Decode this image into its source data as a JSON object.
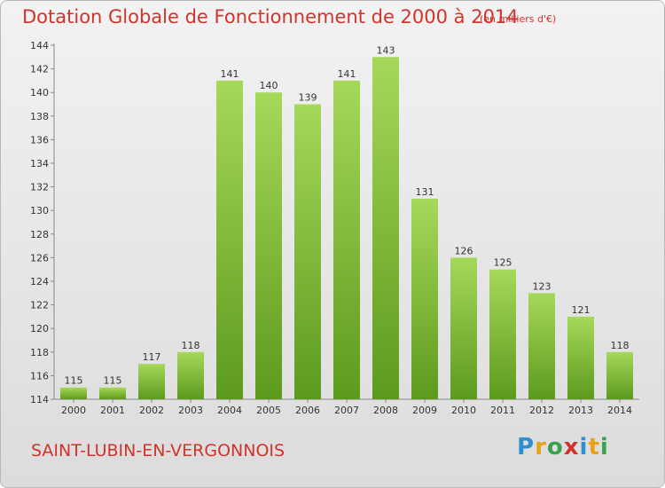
{
  "header": {
    "title": "Dotation Globale de Fonctionnement de 2000 à 2014",
    "unit": "(en milliers d'€)"
  },
  "footer": {
    "commune": "SAINT-LUBIN-EN-VERGONNOIS",
    "logo_letters": [
      "P",
      "r",
      "o",
      "x",
      "i",
      "t",
      "i"
    ],
    "logo_colors": [
      "#2f8fd1",
      "#e8a21a",
      "#3aa34a",
      "#d0342c",
      "#2f8fd1",
      "#e8a21a",
      "#3aa34a"
    ]
  },
  "colors": {
    "bar_light": "#a6d85a",
    "bar_dark": "#5c9a1e",
    "title": "#d0342c"
  },
  "chart_data": {
    "type": "bar",
    "categories": [
      "2000",
      "2001",
      "2002",
      "2003",
      "2004",
      "2005",
      "2006",
      "2007",
      "2008",
      "2009",
      "2010",
      "2011",
      "2012",
      "2013",
      "2014"
    ],
    "values": [
      115,
      115,
      117,
      118,
      141,
      140,
      139,
      141,
      143,
      131,
      126,
      125,
      123,
      121,
      118
    ],
    "ylim": [
      114,
      144
    ],
    "yticks": [
      114,
      116,
      118,
      120,
      122,
      124,
      126,
      128,
      130,
      132,
      134,
      136,
      138,
      140,
      142,
      144
    ],
    "grid": false,
    "legend": "none"
  }
}
